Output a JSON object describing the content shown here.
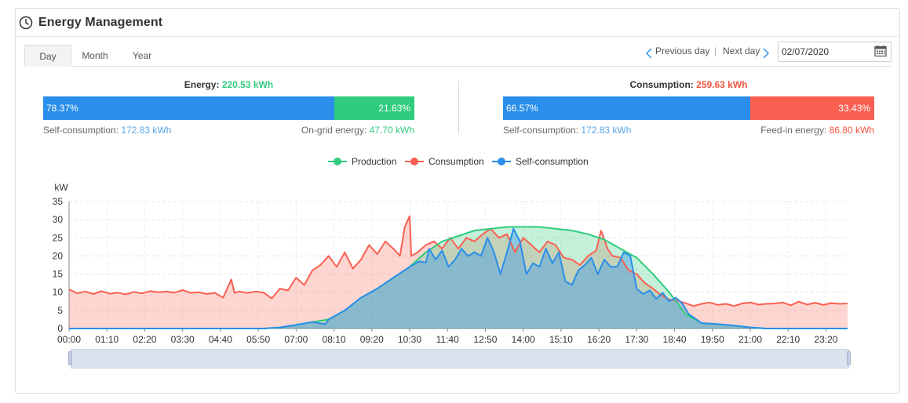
{
  "header": {
    "title": "Energy Management",
    "icon": "clock-icon"
  },
  "tabs": [
    {
      "label": "Day",
      "active": true
    },
    {
      "label": "Month",
      "active": false
    },
    {
      "label": "Year",
      "active": false
    }
  ],
  "nav": {
    "prev_label": "Previous day",
    "separator": "|",
    "next_label": "Next day",
    "date_value": "02/07/2020"
  },
  "energy": {
    "label": "Energy:",
    "total": "220.53 kWh",
    "self_pct": "78.37%",
    "grid_pct": "21.63%",
    "self_share": 0.7837,
    "self_label": "Self-consumption:",
    "self_value": "172.83 kWh",
    "grid_label": "On-grid energy:",
    "grid_value": "47.70 kWh"
  },
  "consumption": {
    "label": "Consumption:",
    "total": "259.63 kWh",
    "self_pct": "66.57%",
    "feed_pct": "33.43%",
    "self_share": 0.6657,
    "self_label": "Self-consumption:",
    "self_value": "172.83 kWh",
    "feed_label": "Feed-in energy:",
    "feed_value": "86.80 kWh"
  },
  "colors": {
    "production": "#2fcc7e",
    "consumption": "#f96052",
    "self_consumption": "#2a8eea",
    "accent_blue": "#2a8eea"
  },
  "chart_data": {
    "type": "area",
    "ylabel": "kW",
    "ylim": [
      0,
      35
    ],
    "yticks": [
      0,
      5,
      10,
      15,
      20,
      25,
      30,
      35
    ],
    "xticks": [
      "00:00",
      "01:10",
      "02:20",
      "03:30",
      "04:40",
      "05:50",
      "07:00",
      "08:10",
      "09:20",
      "10:30",
      "11:40",
      "12:50",
      "14:00",
      "15:10",
      "16:20",
      "17:30",
      "18:40",
      "19:50",
      "21:00",
      "22:10",
      "23:20"
    ],
    "x_range_hours": [
      0,
      24
    ],
    "grid": true,
    "legend_position": "top-center",
    "series": [
      {
        "name": "Production",
        "color": "#2fcc7e",
        "points": [
          [
            0,
            0
          ],
          [
            6,
            0
          ],
          [
            6.5,
            0.3
          ],
          [
            7,
            1.0
          ],
          [
            7.5,
            1.8
          ],
          [
            8,
            2.5
          ],
          [
            8.5,
            5
          ],
          [
            9,
            8.5
          ],
          [
            9.5,
            11
          ],
          [
            10,
            14
          ],
          [
            10.5,
            17
          ],
          [
            11,
            21
          ],
          [
            11.5,
            24
          ],
          [
            12,
            25.5
          ],
          [
            12.5,
            27
          ],
          [
            13,
            27.5
          ],
          [
            13.5,
            28
          ],
          [
            14,
            28
          ],
          [
            14.5,
            28
          ],
          [
            15,
            27.5
          ],
          [
            15.5,
            27
          ],
          [
            16,
            26
          ],
          [
            16.5,
            24.5
          ],
          [
            17,
            22
          ],
          [
            17.5,
            19.5
          ],
          [
            18,
            15
          ],
          [
            18.5,
            10
          ],
          [
            19,
            4
          ],
          [
            19.5,
            1.5
          ],
          [
            20,
            1.2
          ],
          [
            20.5,
            0.8
          ],
          [
            21,
            0.3
          ],
          [
            21.5,
            0
          ],
          [
            24,
            0
          ]
        ]
      },
      {
        "name": "Consumption",
        "color": "#f96052",
        "points": [
          [
            0,
            10.8
          ],
          [
            0.25,
            9.7
          ],
          [
            0.5,
            10.2
          ],
          [
            0.75,
            9.5
          ],
          [
            1,
            10.3
          ],
          [
            1.25,
            9.6
          ],
          [
            1.5,
            9.9
          ],
          [
            1.75,
            9.4
          ],
          [
            2,
            10.1
          ],
          [
            2.25,
            9.7
          ],
          [
            2.5,
            10.3
          ],
          [
            2.75,
            10.0
          ],
          [
            3,
            10.2
          ],
          [
            3.25,
            9.9
          ],
          [
            3.5,
            10.6
          ],
          [
            3.75,
            9.8
          ],
          [
            4,
            10.0
          ],
          [
            4.25,
            9.5
          ],
          [
            4.5,
            9.8
          ],
          [
            4.75,
            8.5
          ],
          [
            5,
            13.5
          ],
          [
            5.1,
            9.8
          ],
          [
            5.25,
            10.2
          ],
          [
            5.5,
            9.8
          ],
          [
            5.75,
            10.2
          ],
          [
            6,
            9.9
          ],
          [
            6.25,
            8.3
          ],
          [
            6.5,
            11
          ],
          [
            6.75,
            10.5
          ],
          [
            7,
            14
          ],
          [
            7.25,
            12
          ],
          [
            7.5,
            16
          ],
          [
            7.75,
            17.5
          ],
          [
            8,
            20
          ],
          [
            8.25,
            17
          ],
          [
            8.5,
            21
          ],
          [
            8.75,
            16.5
          ],
          [
            9,
            19
          ],
          [
            9.25,
            23
          ],
          [
            9.5,
            20.5
          ],
          [
            9.75,
            24
          ],
          [
            10,
            22
          ],
          [
            10.2,
            20
          ],
          [
            10.35,
            28
          ],
          [
            10.5,
            31
          ],
          [
            10.55,
            20
          ],
          [
            10.75,
            21
          ],
          [
            11,
            23
          ],
          [
            11.25,
            24
          ],
          [
            11.5,
            22
          ],
          [
            11.75,
            25
          ],
          [
            12,
            22
          ],
          [
            12.25,
            25
          ],
          [
            12.5,
            24
          ],
          [
            12.75,
            26
          ],
          [
            13,
            27.5
          ],
          [
            13.25,
            25
          ],
          [
            13.5,
            26
          ],
          [
            13.75,
            21
          ],
          [
            14,
            25
          ],
          [
            14.25,
            23
          ],
          [
            14.5,
            21
          ],
          [
            14.75,
            24
          ],
          [
            15,
            23
          ],
          [
            15.25,
            19.5
          ],
          [
            15.5,
            19
          ],
          [
            15.75,
            17.5
          ],
          [
            16,
            20
          ],
          [
            16.25,
            21.5
          ],
          [
            16.4,
            27
          ],
          [
            16.6,
            22
          ],
          [
            16.75,
            20
          ],
          [
            17,
            19.5
          ],
          [
            17.25,
            16
          ],
          [
            17.5,
            15
          ],
          [
            17.75,
            12.5
          ],
          [
            18,
            11
          ],
          [
            18.25,
            9.2
          ],
          [
            18.5,
            8
          ],
          [
            18.75,
            7.7
          ],
          [
            19,
            7
          ],
          [
            19.25,
            6.2
          ],
          [
            19.5,
            6.8
          ],
          [
            19.75,
            7.2
          ],
          [
            20,
            6.5
          ],
          [
            20.25,
            6.8
          ],
          [
            20.5,
            6.2
          ],
          [
            20.75,
            6.9
          ],
          [
            21,
            7.2
          ],
          [
            21.25,
            6.6
          ],
          [
            21.5,
            6.8
          ],
          [
            21.75,
            6.9
          ],
          [
            22,
            7.2
          ],
          [
            22.25,
            6.4
          ],
          [
            22.5,
            7.4
          ],
          [
            22.75,
            6.6
          ],
          [
            23,
            7.1
          ],
          [
            23.25,
            6.5
          ],
          [
            23.5,
            7.0
          ],
          [
            23.75,
            6.8
          ],
          [
            24,
            6.9
          ]
        ]
      },
      {
        "name": "Self-consumption",
        "color": "#2a8eea",
        "points": [
          [
            0,
            0
          ],
          [
            6,
            0
          ],
          [
            6.5,
            0.3
          ],
          [
            7,
            1.0
          ],
          [
            7.5,
            1.8
          ],
          [
            7.9,
            1.2
          ],
          [
            8,
            2.5
          ],
          [
            8.5,
            5
          ],
          [
            9,
            8.5
          ],
          [
            9.5,
            11
          ],
          [
            10,
            14
          ],
          [
            10.5,
            17
          ],
          [
            10.8,
            18.5
          ],
          [
            11,
            18.2
          ],
          [
            11.1,
            22
          ],
          [
            11.3,
            19
          ],
          [
            11.5,
            21.5
          ],
          [
            11.7,
            17
          ],
          [
            11.9,
            19
          ],
          [
            12.1,
            22
          ],
          [
            12.3,
            20
          ],
          [
            12.5,
            21
          ],
          [
            12.7,
            20
          ],
          [
            12.9,
            25
          ],
          [
            13.1,
            21
          ],
          [
            13.3,
            15
          ],
          [
            13.5,
            21
          ],
          [
            13.7,
            27.5
          ],
          [
            13.9,
            24
          ],
          [
            14.1,
            15
          ],
          [
            14.3,
            18
          ],
          [
            14.5,
            17
          ],
          [
            14.7,
            22
          ],
          [
            14.9,
            18
          ],
          [
            15.1,
            21
          ],
          [
            15.3,
            13
          ],
          [
            15.5,
            12
          ],
          [
            15.7,
            16
          ],
          [
            15.9,
            17.5
          ],
          [
            16.1,
            19.5
          ],
          [
            16.3,
            15
          ],
          [
            16.5,
            19
          ],
          [
            16.7,
            17
          ],
          [
            16.9,
            17
          ],
          [
            17.1,
            21
          ],
          [
            17.3,
            20
          ],
          [
            17.5,
            11
          ],
          [
            17.7,
            9.5
          ],
          [
            17.9,
            10.5
          ],
          [
            18.1,
            8.2
          ],
          [
            18.3,
            9.8
          ],
          [
            18.5,
            7.5
          ],
          [
            18.7,
            8.5
          ],
          [
            18.9,
            7
          ],
          [
            19.1,
            4
          ],
          [
            19.5,
            1.5
          ],
          [
            20,
            1.2
          ],
          [
            20.5,
            0.8
          ],
          [
            21,
            0.3
          ],
          [
            21.5,
            0
          ],
          [
            24,
            0
          ]
        ]
      }
    ]
  }
}
